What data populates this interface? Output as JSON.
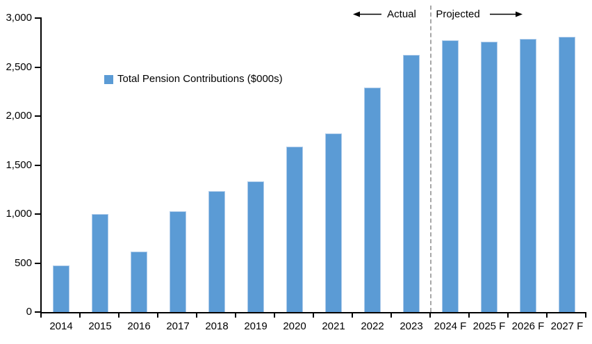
{
  "chart_data": {
    "type": "bar",
    "title": "",
    "legend": "Total Pension Contributions ($000s)",
    "categories": [
      "2014",
      "2015",
      "2016",
      "2017",
      "2018",
      "2019",
      "2020",
      "2021",
      "2022",
      "2023",
      "2024 F",
      "2025 F",
      "2026 F",
      "2027 F"
    ],
    "values": [
      475,
      1000,
      620,
      1030,
      1235,
      1330,
      1690,
      1825,
      2290,
      2625,
      2770,
      2760,
      2785,
      2810
    ],
    "xlabel": "",
    "ylabel": "",
    "ylim": [
      0,
      3000
    ],
    "ytick_step": 500,
    "ytick_labels": [
      "0",
      "500",
      "1,000",
      "1,500",
      "2,000",
      "2,500",
      "3,000"
    ],
    "grid": false,
    "legend_position": "inside-upper-left",
    "annotations": {
      "actual_label": "Actual",
      "projected_label": "Projected",
      "divider_after_category": "2023"
    },
    "colors": {
      "bar_fill": "#5B9BD5",
      "bar_border": "#AECBEA",
      "divider": "#A6A6A6",
      "axis": "#000000",
      "text": "#000000"
    }
  }
}
